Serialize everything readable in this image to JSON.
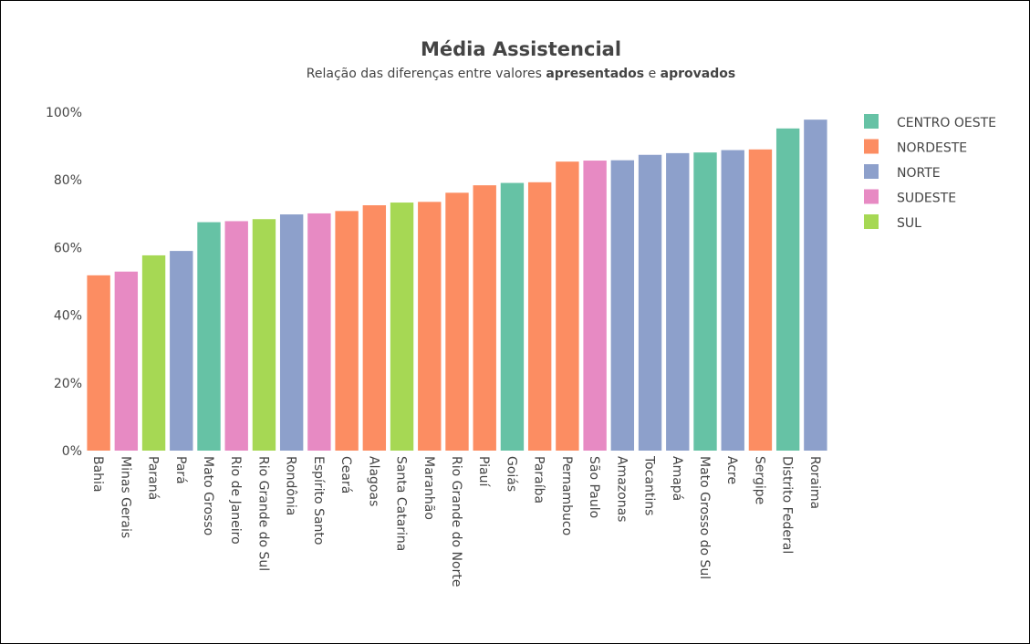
{
  "chart_data": {
    "type": "bar",
    "title": "Média Assistencial",
    "subtitle": {
      "prefix": "Relação das diferenças entre valores ",
      "bold1": "apresentados",
      "middle": " e ",
      "bold2": "aprovados"
    },
    "xlabel": "",
    "ylabel": "",
    "ylim": [
      0,
      100
    ],
    "y_ticks": [
      0,
      20,
      40,
      60,
      80,
      100
    ],
    "y_tick_suffix": "%",
    "grid": false,
    "legend_position": "top-right",
    "legend": [
      {
        "name": "CENTRO OESTE",
        "color": "#66c2a5"
      },
      {
        "name": "NORDESTE",
        "color": "#fc8d62"
      },
      {
        "name": "NORTE",
        "color": "#8da0cb"
      },
      {
        "name": "SUDESTE",
        "color": "#e78ac3"
      },
      {
        "name": "SUL",
        "color": "#a6d854"
      }
    ],
    "categories": [
      "Bahia",
      "Minas Gerais",
      "Paraná",
      "Pará",
      "Mato Grosso",
      "Rio de Janeiro",
      "Rio Grande do Sul",
      "Rondônia",
      "Espírito Santo",
      "Ceará",
      "Alagoas",
      "Santa Catarina",
      "Maranhão",
      "Rio Grande do Norte",
      "Piauí",
      "Goiás",
      "Paraíba",
      "Pernambuco",
      "São Paulo",
      "Amazonas",
      "Tocantins",
      "Amapá",
      "Mato Grosso do Sul",
      "Acre",
      "Sergipe",
      "Distrito Federal",
      "Roraima"
    ],
    "regions": [
      "NORDESTE",
      "SUDESTE",
      "SUL",
      "NORTE",
      "CENTRO OESTE",
      "SUDESTE",
      "SUL",
      "NORTE",
      "SUDESTE",
      "NORDESTE",
      "NORDESTE",
      "SUL",
      "NORDESTE",
      "NORDESTE",
      "NORDESTE",
      "CENTRO OESTE",
      "NORDESTE",
      "NORDESTE",
      "SUDESTE",
      "NORTE",
      "NORTE",
      "NORTE",
      "CENTRO OESTE",
      "NORTE",
      "NORDESTE",
      "CENTRO OESTE",
      "NORTE"
    ],
    "values": [
      51.8,
      52.9,
      57.7,
      59.0,
      67.5,
      67.8,
      68.4,
      69.8,
      70.1,
      70.8,
      72.5,
      73.3,
      73.5,
      76.2,
      78.4,
      79.1,
      79.3,
      85.4,
      85.7,
      85.8,
      87.4,
      87.9,
      88.1,
      88.8,
      89.0,
      95.2,
      97.8
    ]
  }
}
